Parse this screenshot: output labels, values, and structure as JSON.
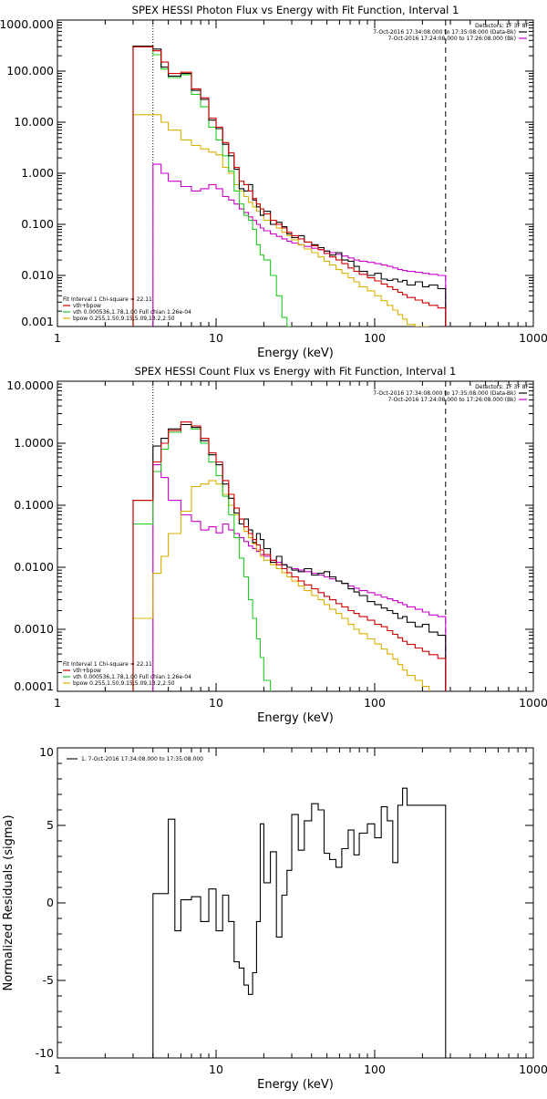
{
  "colors": {
    "data": "#000000",
    "total": "#d00000",
    "vth": "#22cc22",
    "bpow": "#d8b000",
    "background": "#cc00cc"
  },
  "chart_data": [
    {
      "type": "line",
      "title": "SPEX HESSI Photon Flux vs Energy with Fit Function, Interval 1",
      "xlabel": "Energy (keV)",
      "xscale": "log",
      "yscale": "log",
      "xlim": [
        1,
        1000
      ],
      "ylim": [
        0.001,
        1000
      ],
      "xticks": [
        1,
        10,
        100,
        1000
      ],
      "xticklabels": [
        "1",
        "10",
        "100",
        "1000"
      ],
      "yticks": [
        0.001,
        0.01,
        0.1,
        1,
        10,
        100,
        1000
      ],
      "yticklabels": [
        "0.001",
        "0.010",
        "0.100",
        "1.000",
        "10.000",
        "100.000",
        "1000.000"
      ],
      "top_legend": [
        "Detectors: 1F 3F 8F",
        "7-Oct-2016 17:34:08.000 to 17:35:08.000 (Data-Bk)",
        "7-Oct-2016 17:24:08.000 to 17:26:08.000 (Bk)"
      ],
      "fit_legend": [
        "Fit Interval 1   Chi-square = 22.11",
        "vth+bpow",
        "vth 0.000536,1.78,1.00  Full chian 1.26e-04",
        "bpow 0.255,1.50,9.15,5.09,13.2,2.50"
      ],
      "fit_legend_colors": [
        "#000000",
        "#d00000",
        "#22cc22",
        "#d8b000"
      ],
      "vline_dotted": 4.0,
      "vline_dashed": 280,
      "edges": [
        3.0,
        4.0,
        4.5,
        5.0,
        6.0,
        7.0,
        8.0,
        9.0,
        10.0,
        11.0,
        12.0,
        13.0,
        14.0,
        15.0,
        16.0,
        17.0,
        18.0,
        19.0,
        20.0,
        22.0,
        24.0,
        26.0,
        28.0,
        30.0,
        33.0,
        36.0,
        40.0,
        44.0,
        48.0,
        52.0,
        57.0,
        62.0,
        68.0,
        74.0,
        80.0,
        90.0,
        100.0,
        110.0,
        120.0,
        130.0,
        140.0,
        150.0,
        160.0,
        180.0,
        200.0,
        220.0,
        250.0,
        280.0
      ],
      "series": [
        {
          "key": "total",
          "color_key": "total",
          "values": [
            300.0,
            250.0,
            150.0,
            90.0,
            95.0,
            45.0,
            30.0,
            12.0,
            8.0,
            4.0,
            2.5,
            1.3,
            0.7,
            0.6,
            0.45,
            0.32,
            0.25,
            0.2,
            0.16,
            0.12,
            0.1,
            0.085,
            0.07,
            0.06,
            0.052,
            0.045,
            0.038,
            0.032,
            0.027,
            0.023,
            0.02,
            0.017,
            0.014,
            0.012,
            0.0105,
            0.009,
            0.0078,
            0.0068,
            0.006,
            0.0053,
            0.0047,
            0.0042,
            0.0037,
            0.0033,
            0.0029,
            0.0026,
            0.0023
          ]
        },
        {
          "key": "data",
          "color_key": "data",
          "values": [
            310.0,
            270.0,
            120.0,
            80.0,
            90.0,
            42.0,
            28.0,
            11.0,
            7.5,
            3.7,
            2.2,
            1.2,
            0.5,
            0.45,
            0.6,
            0.3,
            0.22,
            0.15,
            0.18,
            0.1,
            0.11,
            0.09,
            0.065,
            0.055,
            0.06,
            0.045,
            0.04,
            0.035,
            0.03,
            0.025,
            0.028,
            0.02,
            0.019,
            0.015,
            0.012,
            0.01,
            0.011,
            0.0085,
            0.008,
            0.0085,
            0.0075,
            0.008,
            0.0065,
            0.0075,
            0.006,
            0.0065,
            0.0055
          ]
        },
        {
          "key": "vth",
          "color_key": "vth",
          "values": [
            300.0,
            210.0,
            110.0,
            75.0,
            85.0,
            35.0,
            20.0,
            8.0,
            4.5,
            2.2,
            1.1,
            0.45,
            0.25,
            0.15,
            0.12,
            0.08,
            0.04,
            0.025,
            0.02,
            0.01,
            0.004,
            0.0015,
            0.0005,
            null,
            null,
            null,
            null,
            null,
            null,
            null,
            null,
            null,
            null,
            null,
            null,
            null,
            null,
            null,
            null,
            null,
            null,
            null,
            null,
            null,
            null,
            null,
            null
          ]
        },
        {
          "key": "bpow",
          "color_key": "bpow",
          "values": [
            14.0,
            14.0,
            10.0,
            7.0,
            4.5,
            3.5,
            3.0,
            2.6,
            2.3,
            1.3,
            1.0,
            0.6,
            0.45,
            0.35,
            0.27,
            0.22,
            0.18,
            0.15,
            0.12,
            0.1,
            0.085,
            0.07,
            0.06,
            0.05,
            0.04,
            0.033,
            0.028,
            0.023,
            0.019,
            0.016,
            0.013,
            0.011,
            0.009,
            0.0075,
            0.006,
            0.005,
            0.004,
            0.0032,
            0.0026,
            0.0021,
            0.0017,
            0.0014,
            0.0011,
            0.0008,
            0.0006,
            null,
            null
          ]
        },
        {
          "key": "background",
          "color_key": "background",
          "values": [
            null,
            1.5,
            1.0,
            0.7,
            0.55,
            0.45,
            0.5,
            0.6,
            0.5,
            0.35,
            0.3,
            0.25,
            0.2,
            0.17,
            0.14,
            0.12,
            0.1,
            0.085,
            0.075,
            0.065,
            0.058,
            0.052,
            0.047,
            0.043,
            0.04,
            0.037,
            0.034,
            0.032,
            0.03,
            0.028,
            0.026,
            0.024,
            0.022,
            0.02,
            0.019,
            0.018,
            0.017,
            0.016,
            0.015,
            0.014,
            0.013,
            0.0125,
            0.012,
            0.0115,
            0.011,
            0.0105,
            0.01
          ]
        }
      ]
    },
    {
      "type": "line",
      "title": "SPEX HESSI Count Flux vs Energy with Fit Function, Interval 1",
      "xlabel": "Energy (keV)",
      "xscale": "log",
      "yscale": "log",
      "xlim": [
        1,
        1000
      ],
      "ylim": [
        0.0001,
        10
      ],
      "xticks": [
        1,
        10,
        100,
        1000
      ],
      "xticklabels": [
        "1",
        "10",
        "100",
        "1000"
      ],
      "yticks": [
        0.0001,
        0.001,
        0.01,
        0.1,
        1,
        10
      ],
      "yticklabels": [
        "0.0001",
        "0.0010",
        "0.0100",
        "0.1000",
        "1.0000",
        "10.0000"
      ],
      "top_legend": [
        "Detectors: 1F 3F 8F",
        "7-Oct-2016 17:34:08.000 to 17:35:08.000 (Data-Bk)",
        "7-Oct-2016 17:24:08.000 to 17:26:08.000 (Bk)"
      ],
      "fit_legend": [
        "Fit Interval 1   Chi-square = 22.11",
        "vth+bpow",
        "vth 0.000536,1.78,1.00  Full chian 1.26e-04",
        "bpow 0.255,1.50,9.15,5.09,13.2,2.50"
      ],
      "fit_legend_colors": [
        "#000000",
        "#d00000",
        "#22cc22",
        "#d8b000"
      ],
      "vline_dotted": 4.0,
      "vline_dashed": 280,
      "edges": [
        3.0,
        4.0,
        4.5,
        5.0,
        6.0,
        7.0,
        8.0,
        9.0,
        10.0,
        11.0,
        12.0,
        13.0,
        14.0,
        15.0,
        16.0,
        17.0,
        18.0,
        19.0,
        20.0,
        22.0,
        24.0,
        26.0,
        28.0,
        30.0,
        33.0,
        36.0,
        40.0,
        44.0,
        48.0,
        52.0,
        57.0,
        62.0,
        68.0,
        74.0,
        80.0,
        90.0,
        100.0,
        110.0,
        120.0,
        130.0,
        140.0,
        150.0,
        160.0,
        180.0,
        200.0,
        220.0,
        250.0,
        280.0
      ],
      "series": [
        {
          "key": "total",
          "color_key": "total",
          "values": [
            0.12,
            0.5,
            1.0,
            1.6,
            2.2,
            1.9,
            1.2,
            0.7,
            0.5,
            0.25,
            0.15,
            0.09,
            0.06,
            0.045,
            0.035,
            0.028,
            0.023,
            0.019,
            0.016,
            0.013,
            0.011,
            0.0095,
            0.0082,
            0.007,
            0.006,
            0.0052,
            0.0045,
            0.0039,
            0.0034,
            0.003,
            0.0026,
            0.0023,
            0.002,
            0.0018,
            0.0016,
            0.0014,
            0.0012,
            0.0011,
            0.00095,
            0.00083,
            0.00073,
            0.00064,
            0.00057,
            0.0005,
            0.00044,
            0.00039,
            0.00034
          ]
        },
        {
          "key": "data",
          "color_key": "data",
          "values": [
            0.12,
            0.9,
            1.2,
            1.7,
            2.0,
            1.8,
            1.1,
            0.65,
            0.45,
            0.22,
            0.13,
            0.075,
            0.05,
            0.06,
            0.04,
            0.025,
            0.035,
            0.028,
            0.02,
            0.012,
            0.015,
            0.011,
            0.01,
            0.009,
            0.0085,
            0.0095,
            0.0075,
            0.008,
            0.0085,
            0.007,
            0.006,
            0.0055,
            0.0045,
            0.004,
            0.0035,
            0.0028,
            0.0025,
            0.0022,
            0.002,
            0.0018,
            0.0015,
            0.0016,
            0.0013,
            0.0011,
            0.0012,
            0.0009,
            0.0008
          ]
        },
        {
          "key": "vth",
          "color_key": "vth",
          "values": [
            0.05,
            0.35,
            0.8,
            1.5,
            2.0,
            1.7,
            1.0,
            0.5,
            0.3,
            0.14,
            0.07,
            0.03,
            0.014,
            0.007,
            0.003,
            0.0015,
            0.0007,
            0.00035,
            0.00015,
            null,
            null,
            null,
            null,
            null,
            null,
            null,
            null,
            null,
            null,
            null,
            null,
            null,
            null,
            null,
            null,
            null,
            null,
            null,
            null,
            null,
            null,
            null,
            null,
            null,
            null,
            null,
            null
          ]
        },
        {
          "key": "bpow",
          "color_key": "bpow",
          "values": [
            0.0015,
            0.008,
            0.015,
            0.035,
            0.08,
            0.2,
            0.22,
            0.25,
            0.22,
            0.15,
            0.1,
            0.07,
            0.05,
            0.038,
            0.03,
            0.024,
            0.019,
            0.015,
            0.013,
            0.011,
            0.0095,
            0.0082,
            0.007,
            0.006,
            0.005,
            0.0042,
            0.0035,
            0.003,
            0.0025,
            0.0021,
            0.0018,
            0.0015,
            0.0012,
            0.001,
            0.00085,
            0.0007,
            0.00058,
            0.00048,
            0.0004,
            0.00033,
            0.00027,
            0.00022,
            0.00018,
            0.00015,
            0.00012,
            null,
            null
          ]
        },
        {
          "key": "background",
          "color_key": "background",
          "values": [
            null,
            0.45,
            0.28,
            0.12,
            0.07,
            0.055,
            0.04,
            0.045,
            0.036,
            0.05,
            0.04,
            0.035,
            0.03,
            0.026,
            0.022,
            0.02,
            0.018,
            0.016,
            0.015,
            0.013,
            0.012,
            0.011,
            0.01,
            0.0095,
            0.009,
            0.0085,
            0.008,
            0.0075,
            0.007,
            0.0065,
            0.006,
            0.0055,
            0.005,
            0.0046,
            0.0042,
            0.0039,
            0.0036,
            0.0033,
            0.0031,
            0.0029,
            0.0027,
            0.0025,
            0.0023,
            0.0021,
            0.0019,
            0.0017,
            0.0016
          ]
        }
      ]
    },
    {
      "type": "line",
      "title": "",
      "xlabel": "Energy (keV)",
      "ylabel": "Normalized Residuals (sigma)",
      "xscale": "log",
      "yscale": "linear",
      "xlim": [
        1,
        1000
      ],
      "ylim": [
        -10,
        10
      ],
      "xticks": [
        1,
        10,
        100,
        1000
      ],
      "xticklabels": [
        "1",
        "10",
        "100",
        "1000"
      ],
      "yticks": [
        -10,
        -5,
        0,
        5,
        10
      ],
      "yticklabels": [
        "-10",
        "-5",
        "0",
        "5",
        "10"
      ],
      "legend": [
        "1.  7-Oct-2016 17:34:08.000 to 17:35:08.000"
      ],
      "edges": [
        4.0,
        4.5,
        5.0,
        5.5,
        6.0,
        7.0,
        8.0,
        9.0,
        10.0,
        11.0,
        12.0,
        13.0,
        14.0,
        15.0,
        16.0,
        17.0,
        18.0,
        19.0,
        20.0,
        22.0,
        24.0,
        26.0,
        28.0,
        30.0,
        33.0,
        36.0,
        40.0,
        44.0,
        48.0,
        52.0,
        57.0,
        62.0,
        68.0,
        74.0,
        80.0,
        90.0,
        100.0,
        110.0,
        120.0,
        130.0,
        140.0,
        150.0,
        160.0,
        180.0,
        200.0,
        220.0,
        250.0,
        280.0
      ],
      "series": [
        {
          "key": "residuals",
          "color_key": "data",
          "values": [
            0.6,
            0.6,
            5.4,
            -1.8,
            0.2,
            0.4,
            -1.2,
            0.9,
            -1.8,
            0.5,
            -1.2,
            -3.8,
            -4.2,
            -5.3,
            -5.9,
            -4.5,
            -1.2,
            5.1,
            1.3,
            3.3,
            -2.2,
            0.5,
            2.1,
            5.7,
            3.4,
            5.3,
            6.4,
            6.0,
            3.2,
            2.8,
            2.3,
            3.5,
            4.7,
            3.1,
            4.5,
            5.1,
            4.2,
            6.2,
            5.3,
            2.6,
            6.3,
            7.4,
            6.3,
            6.3,
            6.3,
            6.3,
            6.3
          ]
        }
      ]
    }
  ]
}
